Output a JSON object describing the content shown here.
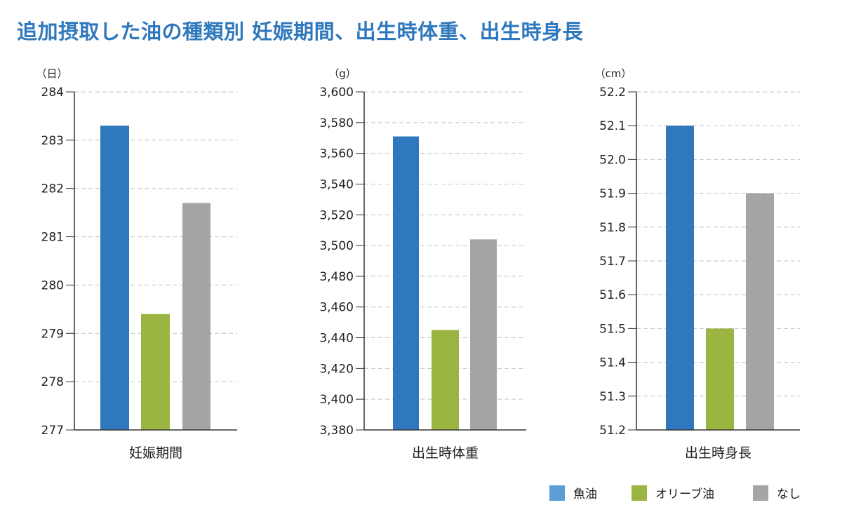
{
  "title": "追加摂取した油の種類別 妊娠期間、出生時体重、出生時身長",
  "legend": [
    {
      "label": "魚油",
      "color": "#5b9fd6"
    },
    {
      "label": "オリーブ油",
      "color": "#9ab541"
    },
    {
      "label": "なし",
      "color": "#a5a5a5"
    }
  ],
  "chart_data": [
    {
      "type": "bar",
      "unit": "（日）",
      "xlabel": "妊娠期間",
      "ylim": [
        277,
        284
      ],
      "yticks": [
        277,
        278,
        279,
        280,
        281,
        282,
        283,
        284
      ],
      "ytick_labels": [
        "277",
        "278",
        "279",
        "280",
        "281",
        "282",
        "283",
        "284"
      ],
      "grid": true,
      "series": [
        {
          "name": "魚油",
          "value": 283.3,
          "color": "#2f78bd"
        },
        {
          "name": "オリーブ油",
          "value": 279.4,
          "color": "#9ab541"
        },
        {
          "name": "なし",
          "value": 281.7,
          "color": "#a5a5a5"
        }
      ]
    },
    {
      "type": "bar",
      "unit": "（g）",
      "xlabel": "出生時体重",
      "ylim": [
        3380,
        3600
      ],
      "yticks": [
        3380,
        3400,
        3420,
        3440,
        3460,
        3480,
        3500,
        3520,
        3540,
        3560,
        3580,
        3600
      ],
      "ytick_labels": [
        "3,380",
        "3,400",
        "3,420",
        "3,440",
        "3,460",
        "3,480",
        "3,500",
        "3,520",
        "3,540",
        "3,560",
        "3,580",
        "3,600"
      ],
      "grid": true,
      "series": [
        {
          "name": "魚油",
          "value": 3571,
          "color": "#2f78bd"
        },
        {
          "name": "オリーブ油",
          "value": 3445,
          "color": "#9ab541"
        },
        {
          "name": "なし",
          "value": 3504,
          "color": "#a5a5a5"
        }
      ]
    },
    {
      "type": "bar",
      "unit": "（cm）",
      "xlabel": "出生時身長",
      "ylim": [
        51.2,
        52.2
      ],
      "yticks": [
        51.2,
        51.3,
        51.4,
        51.5,
        51.6,
        51.7,
        51.8,
        51.9,
        52.0,
        52.1,
        52.2
      ],
      "ytick_labels": [
        "51.2",
        "51.3",
        "51.4",
        "51.5",
        "51.6",
        "51.7",
        "51.8",
        "51.9",
        "52.0",
        "52.1",
        "52.2"
      ],
      "grid": true,
      "series": [
        {
          "name": "魚油",
          "value": 52.1,
          "color": "#2f78bd"
        },
        {
          "name": "オリーブ油",
          "value": 51.5,
          "color": "#9ab541"
        },
        {
          "name": "なし",
          "value": 51.9,
          "color": "#a5a5a5"
        }
      ]
    }
  ]
}
